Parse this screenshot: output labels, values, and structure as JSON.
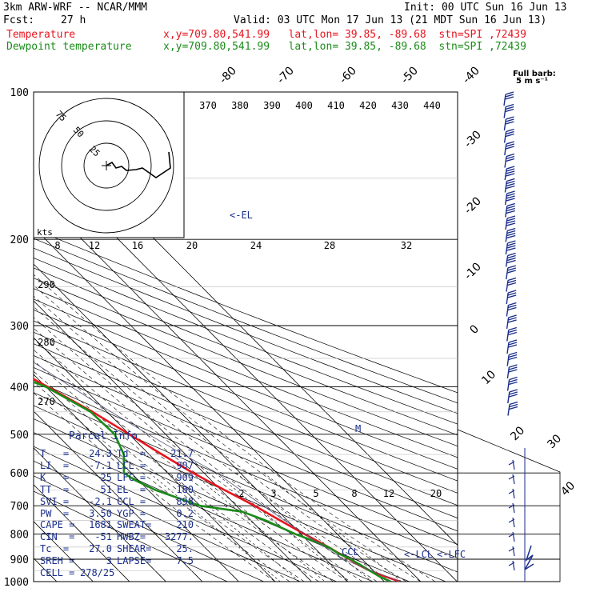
{
  "header": {
    "model": "3km ARW-WRF -- NCAR/MMM",
    "init": "Init: 00 UTC Sun 16 Jun 13",
    "fcst_label": "Fcst:",
    "fcst_value": "27 h",
    "valid": "Valid: 03 UTC Mon 17 Jun 13 (21 MDT Sun 16 Jun 13)",
    "temp_label": "Temperature",
    "dew_label": "Dewpoint temperature",
    "temp_loc": "x,y=709.80,541.99   lat,lon= 39.85, -89.68  stn=SPI ,72439",
    "dew_loc": "x,y=709.80,541.99   lat,lon= 39.85, -89.68  stn=SPI ,72439"
  },
  "barb_key": {
    "title": "Full barb:",
    "value": "5 m s⁻¹"
  },
  "hodograph": {
    "units": "kts",
    "ring_labels": [
      "75",
      "50",
      "25"
    ],
    "colors": {
      "trace": "#000000",
      "ring": "#000000"
    }
  },
  "parcel_info": {
    "title": "Parcel Info",
    "rows": [
      [
        "T   =",
        "24.3",
        "Td  =",
        "21.7"
      ],
      [
        "LI  =",
        "-7.1",
        "LCL =",
        "907"
      ],
      [
        "K   =",
        "25",
        "LFC =",
        "909"
      ],
      [
        "TT  =",
        "51",
        "EL  =",
        "180"
      ],
      [
        "SVI =",
        "-2.1",
        "CCL =",
        "898"
      ],
      [
        "PW  =",
        "3.50",
        "YGP =",
        "0.2"
      ],
      [
        "CAPE =",
        "1681",
        "SWEAT=",
        "210"
      ],
      [
        "CIN  =",
        "-51",
        "HWBZ=",
        "3277."
      ],
      [
        "Tc  =",
        "27.0",
        "SHEAR=",
        "25."
      ],
      [
        "SREH =",
        "3",
        "LAPSE=",
        "7.5"
      ],
      [
        "CELL =",
        "278/25",
        "",
        ""
      ]
    ]
  },
  "chart_data": {
    "type": "line",
    "title": "",
    "colors": {
      "temperature": "#e8141e",
      "dewpoint": "#1a8c1a",
      "barbs": "#1a2e8c",
      "parcel": "#1a2e8c"
    },
    "pressure_labels": [
      "100",
      "200",
      "300",
      "400",
      "500",
      "600",
      "700",
      "800",
      "900",
      "1000"
    ],
    "isotherm_labels": [
      "-80",
      "-70",
      "-60",
      "-50",
      "-40",
      "-30",
      "-20",
      "-10",
      "0",
      "10",
      "20",
      "30",
      "40"
    ],
    "theta_e_labels": [
      "370",
      "380",
      "390",
      "400",
      "410",
      "420",
      "430",
      "440"
    ],
    "dry_adiabat_labels": [
      "290",
      "280",
      "270"
    ],
    "mixing_ratio_labels_upper": [
      "8",
      "12",
      "16",
      "20",
      "24",
      "28",
      "32"
    ],
    "mixing_ratio_labels_lower": [
      "2",
      "3",
      "5",
      "8",
      "12",
      "20"
    ],
    "markers": {
      "el": "<-EL",
      "lcl": "<-LCL",
      "lfc": "<-LFC",
      "ccl": "CCL",
      "m": "M"
    },
    "series": [
      {
        "name": "Temperature",
        "points": [
          [
            1000,
            24.3
          ],
          [
            975,
            21.5
          ],
          [
            950,
            19.0
          ],
          [
            925,
            17.5
          ],
          [
            900,
            16.5
          ],
          [
            875,
            15.2
          ],
          [
            850,
            14.0
          ],
          [
            800,
            11.0
          ],
          [
            750,
            8.0
          ],
          [
            700,
            5.0
          ],
          [
            650,
            1.0
          ],
          [
            600,
            -3.0
          ],
          [
            550,
            -6.5
          ],
          [
            500,
            -10.0
          ],
          [
            450,
            -14.0
          ],
          [
            400,
            -19.5
          ],
          [
            350,
            -26.0
          ],
          [
            300,
            -33.0
          ],
          [
            250,
            -42.0
          ],
          [
            200,
            -52.0
          ],
          [
            180,
            -56.0
          ],
          [
            170,
            -54.0
          ],
          [
            150,
            -55.0
          ],
          [
            125,
            -58.0
          ],
          [
            110,
            -60.0
          ],
          [
            100,
            -62.0
          ]
        ]
      },
      {
        "name": "Dewpoint temperature",
        "points": [
          [
            1000,
            21.7
          ],
          [
            975,
            20.0
          ],
          [
            950,
            19.0
          ],
          [
            925,
            18.0
          ],
          [
            900,
            16.8
          ],
          [
            875,
            15.0
          ],
          [
            850,
            14.0
          ],
          [
            820,
            11.0
          ],
          [
            800,
            8.5
          ],
          [
            750,
            4.0
          ],
          [
            720,
            0.0
          ],
          [
            700,
            -10.0
          ],
          [
            650,
            -18.0
          ],
          [
            620,
            -21.0
          ],
          [
            600,
            -22.0
          ],
          [
            550,
            -17.0
          ],
          [
            500,
            -14.0
          ],
          [
            450,
            -14.5
          ],
          [
            400,
            -20.0
          ],
          [
            370,
            -27.0
          ],
          [
            350,
            -33.0
          ],
          [
            320,
            -36.0
          ],
          [
            300,
            -37.0
          ],
          [
            250,
            -46.0
          ],
          [
            200,
            -56.0
          ],
          [
            175,
            -62.0
          ],
          [
            150,
            -70.0
          ],
          [
            130,
            -80.0
          ],
          [
            115,
            -88.0
          ],
          [
            100,
            -95.0
          ]
        ]
      }
    ]
  }
}
